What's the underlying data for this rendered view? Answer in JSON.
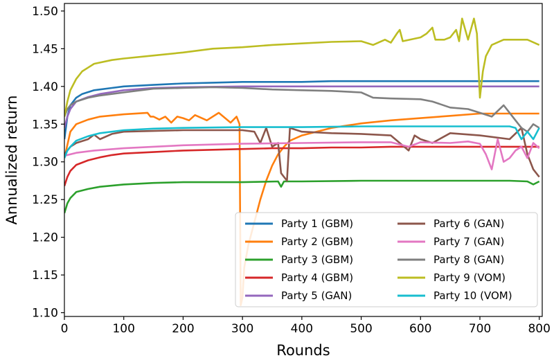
{
  "chart_data": {
    "type": "line",
    "title": "",
    "xlabel": "Rounds",
    "ylabel": "Annualized return",
    "xlim": [
      0,
      805
    ],
    "ylim": [
      1.095,
      1.51
    ],
    "xticks": [
      0,
      100,
      200,
      300,
      400,
      500,
      600,
      700,
      800
    ],
    "yticks": [
      1.1,
      1.15,
      1.2,
      1.25,
      1.3,
      1.35,
      1.4,
      1.45,
      1.5
    ],
    "grid": false,
    "legend_position": "lower-right",
    "legend_columns": 2,
    "series": [
      {
        "name": "Party 1 (GBM)",
        "color": "#1f77b4",
        "x": [
          0,
          5,
          10,
          20,
          30,
          50,
          80,
          100,
          150,
          200,
          250,
          300,
          350,
          400,
          450,
          500,
          550,
          600,
          650,
          700,
          750,
          800
        ],
        "y": [
          1.33,
          1.36,
          1.375,
          1.385,
          1.39,
          1.395,
          1.398,
          1.4,
          1.402,
          1.404,
          1.405,
          1.406,
          1.406,
          1.406,
          1.407,
          1.407,
          1.407,
          1.407,
          1.407,
          1.407,
          1.407,
          1.407
        ]
      },
      {
        "name": "Party 2 (GBM)",
        "color": "#ff7f0e",
        "x": [
          0,
          10,
          20,
          40,
          60,
          100,
          140,
          145,
          150,
          160,
          170,
          180,
          190,
          200,
          210,
          220,
          240,
          260,
          280,
          290,
          295,
          297,
          300,
          303,
          310,
          320,
          330,
          340,
          350,
          360,
          370,
          380,
          400,
          450,
          500,
          550,
          600,
          650,
          700,
          750,
          800
        ],
        "y": [
          1.305,
          1.34,
          1.35,
          1.356,
          1.36,
          1.363,
          1.365,
          1.36,
          1.36,
          1.356,
          1.36,
          1.352,
          1.36,
          1.358,
          1.355,
          1.362,
          1.355,
          1.365,
          1.352,
          1.36,
          1.35,
          1.11,
          1.12,
          1.16,
          1.19,
          1.22,
          1.25,
          1.275,
          1.295,
          1.31,
          1.32,
          1.328,
          1.335,
          1.345,
          1.351,
          1.355,
          1.358,
          1.361,
          1.364,
          1.364,
          1.364
        ]
      },
      {
        "name": "Party 3 (GBM)",
        "color": "#2ca02c",
        "x": [
          0,
          5,
          10,
          20,
          40,
          60,
          100,
          150,
          200,
          300,
          360,
          365,
          370,
          400,
          500,
          600,
          700,
          750,
          780,
          790,
          800
        ],
        "y": [
          1.232,
          1.245,
          1.252,
          1.26,
          1.264,
          1.267,
          1.27,
          1.272,
          1.273,
          1.273,
          1.274,
          1.267,
          1.274,
          1.274,
          1.275,
          1.275,
          1.275,
          1.275,
          1.274,
          1.27,
          1.274
        ]
      },
      {
        "name": "Party 4 (GBM)",
        "color": "#d62728",
        "x": [
          0,
          5,
          10,
          20,
          40,
          60,
          80,
          100,
          150,
          200,
          250,
          300,
          350,
          400,
          450,
          500,
          550,
          600,
          650,
          700,
          750,
          800
        ],
        "y": [
          1.268,
          1.28,
          1.288,
          1.296,
          1.302,
          1.306,
          1.309,
          1.311,
          1.313,
          1.315,
          1.316,
          1.317,
          1.318,
          1.318,
          1.319,
          1.319,
          1.32,
          1.32,
          1.32,
          1.32,
          1.32,
          1.32
        ]
      },
      {
        "name": "Party 5 (GAN)",
        "color": "#9467bd",
        "x": [
          0,
          5,
          10,
          20,
          40,
          60,
          100,
          150,
          200,
          300,
          400,
          500,
          600,
          700,
          800
        ],
        "y": [
          1.345,
          1.36,
          1.37,
          1.38,
          1.386,
          1.39,
          1.395,
          1.398,
          1.399,
          1.4,
          1.4,
          1.4,
          1.4,
          1.4,
          1.4
        ]
      },
      {
        "name": "Party 6 (GAN)",
        "color": "#8c564b",
        "x": [
          0,
          10,
          20,
          40,
          50,
          60,
          80,
          100,
          150,
          200,
          250,
          300,
          320,
          330,
          340,
          350,
          360,
          365,
          370,
          375,
          380,
          400,
          450,
          500,
          550,
          580,
          590,
          600,
          620,
          650,
          700,
          750,
          770,
          780,
          790,
          800
        ],
        "y": [
          1.31,
          1.32,
          1.325,
          1.33,
          1.336,
          1.33,
          1.337,
          1.34,
          1.341,
          1.342,
          1.342,
          1.342,
          1.34,
          1.325,
          1.345,
          1.32,
          1.325,
          1.285,
          1.28,
          1.275,
          1.345,
          1.34,
          1.338,
          1.337,
          1.335,
          1.315,
          1.335,
          1.33,
          1.325,
          1.338,
          1.335,
          1.33,
          1.345,
          1.31,
          1.29,
          1.28
        ]
      },
      {
        "name": "Party 7 (GAN)",
        "color": "#e377c2",
        "x": [
          0,
          20,
          50,
          100,
          150,
          200,
          300,
          400,
          500,
          550,
          580,
          600,
          650,
          680,
          700,
          710,
          720,
          730,
          740,
          750,
          760,
          770,
          780,
          790,
          800
        ],
        "y": [
          1.308,
          1.312,
          1.315,
          1.318,
          1.32,
          1.322,
          1.324,
          1.325,
          1.326,
          1.326,
          1.32,
          1.326,
          1.325,
          1.327,
          1.324,
          1.31,
          1.29,
          1.33,
          1.3,
          1.305,
          1.315,
          1.32,
          1.305,
          1.325,
          1.318
        ]
      },
      {
        "name": "Party 8 (GAN)",
        "color": "#7f7f7f",
        "x": [
          0,
          5,
          10,
          20,
          40,
          60,
          100,
          150,
          200,
          250,
          300,
          350,
          400,
          450,
          500,
          520,
          550,
          600,
          620,
          650,
          680,
          700,
          720,
          740,
          750,
          760,
          770,
          780,
          790,
          800
        ],
        "y": [
          1.36,
          1.37,
          1.375,
          1.38,
          1.385,
          1.388,
          1.392,
          1.397,
          1.398,
          1.399,
          1.398,
          1.396,
          1.395,
          1.394,
          1.392,
          1.385,
          1.384,
          1.383,
          1.38,
          1.372,
          1.37,
          1.365,
          1.36,
          1.375,
          1.365,
          1.355,
          1.345,
          1.34,
          1.35,
          1.345
        ]
      },
      {
        "name": "Party 9 (VOM)",
        "color": "#bcbd22",
        "x": [
          0,
          5,
          10,
          20,
          30,
          50,
          80,
          100,
          150,
          200,
          250,
          300,
          350,
          400,
          450,
          500,
          520,
          540,
          550,
          560,
          565,
          570,
          600,
          610,
          620,
          625,
          640,
          650,
          660,
          665,
          670,
          680,
          690,
          695,
          700,
          705,
          710,
          720,
          740,
          760,
          780,
          800
        ],
        "y": [
          1.36,
          1.38,
          1.395,
          1.41,
          1.42,
          1.43,
          1.435,
          1.437,
          1.441,
          1.445,
          1.45,
          1.452,
          1.455,
          1.457,
          1.459,
          1.46,
          1.455,
          1.462,
          1.458,
          1.47,
          1.475,
          1.46,
          1.465,
          1.47,
          1.478,
          1.462,
          1.462,
          1.465,
          1.475,
          1.46,
          1.49,
          1.462,
          1.49,
          1.47,
          1.385,
          1.42,
          1.44,
          1.455,
          1.462,
          1.462,
          1.462,
          1.455
        ]
      },
      {
        "name": "Party 10 (VOM)",
        "color": "#17becf",
        "x": [
          0,
          5,
          10,
          20,
          40,
          60,
          100,
          150,
          200,
          300,
          400,
          500,
          600,
          700,
          750,
          760,
          770,
          780,
          790,
          800
        ],
        "y": [
          1.305,
          1.315,
          1.32,
          1.328,
          1.334,
          1.338,
          1.342,
          1.344,
          1.345,
          1.346,
          1.346,
          1.347,
          1.347,
          1.347,
          1.347,
          1.345,
          1.33,
          1.34,
          1.33,
          1.345
        ]
      }
    ]
  }
}
